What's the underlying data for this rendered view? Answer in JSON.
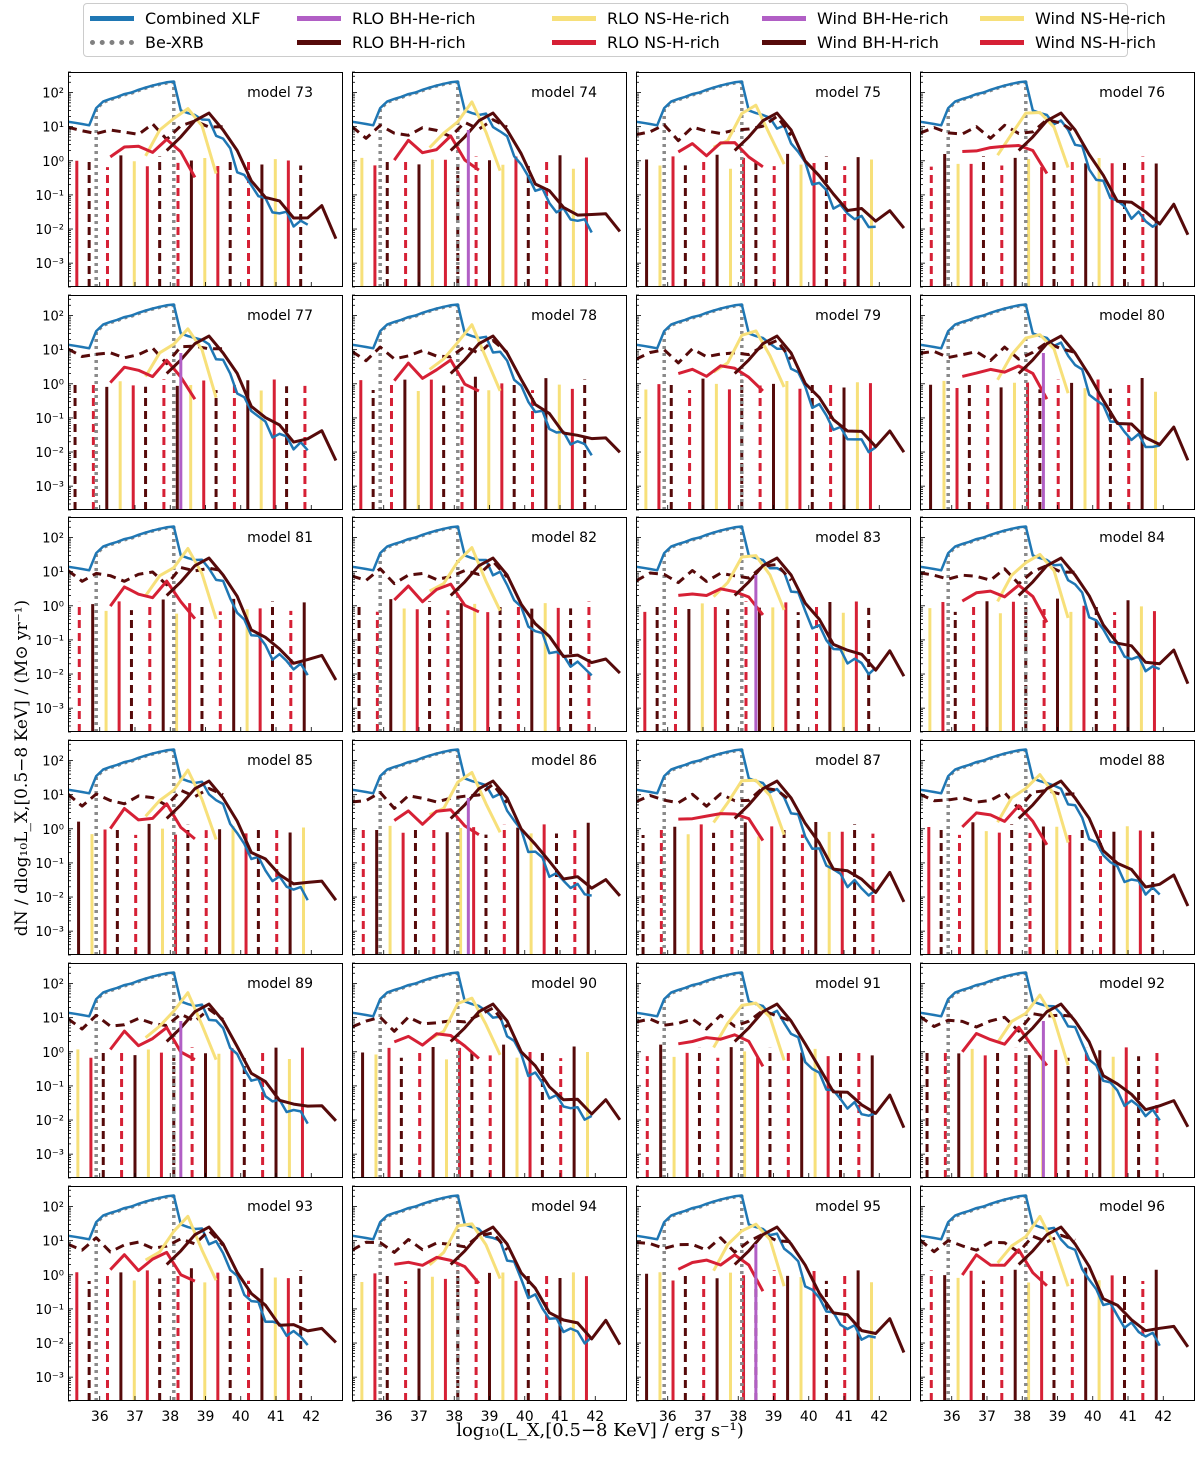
{
  "legend": [
    {
      "label": "Combined XLF",
      "color": "#1f77b4",
      "dash": "solid"
    },
    {
      "label": "Be-XRB",
      "color": "#808080",
      "dash": "dotted"
    },
    {
      "label": "RLO BH-He-rich",
      "color": "#b15fc5",
      "dash": "solid"
    },
    {
      "label": "RLO BH-H-rich",
      "color": "#560a0a",
      "dash": "solid"
    },
    {
      "label": "RLO NS-He-rich",
      "color": "#f7e07a",
      "dash": "solid"
    },
    {
      "label": "RLO NS-H-rich",
      "color": "#d62035",
      "dash": "solid"
    },
    {
      "label": "Wind BH-He-rich",
      "color": "#b15fc5",
      "dash": "solid"
    },
    {
      "label": "Wind BH-H-rich",
      "color": "#560a0a",
      "dash": "solid"
    },
    {
      "label": "Wind NS-He-rich",
      "color": "#f7e07a",
      "dash": "solid"
    },
    {
      "label": "Wind NS-H-rich",
      "color": "#d62035",
      "dash": "solid"
    }
  ],
  "axis_labels": {
    "y": "dN / dlog₁₀L_X,[0.5−8 KeV] / (M⊙ yr⁻¹)",
    "x": "log₁₀(L_X,[0.5−8 KeV] / erg s⁻¹)"
  },
  "chart_data": {
    "type": "line",
    "xlabel": "log₁₀(L_X,[0.5−8 KeV] / erg s⁻¹)",
    "ylabel": "dN / dlog₁₀L_X,[0.5−8 KeV] / (M⊙ yr⁻¹)",
    "xlim": [
      35.1,
      42.9
    ],
    "ylim": [
      0.0002,
      400
    ],
    "yscale": "log",
    "xticks": [
      36,
      37,
      38,
      39,
      40,
      41,
      42
    ],
    "yticks": [
      0.001,
      0.01,
      0.1,
      1,
      10,
      100
    ],
    "ytick_labels": [
      "10⁻³",
      "10⁻²",
      "10⁻¹",
      "10⁰",
      "10¹",
      "10²"
    ],
    "panel_titles": [
      "model 73",
      "model 74",
      "model 75",
      "model 76",
      "model 77",
      "model 78",
      "model 79",
      "model 80",
      "model 81",
      "model 82",
      "model 83",
      "model 84",
      "model 85",
      "model 86",
      "model 87",
      "model 88",
      "model 89",
      "model 90",
      "model 91",
      "model 92",
      "model 93",
      "model 94",
      "model 95",
      "model 96"
    ],
    "combined_xlf": {
      "x": [
        35.1,
        35.3,
        35.5,
        35.7,
        35.9,
        36.1,
        36.3,
        36.5,
        36.7,
        36.9,
        37.1,
        37.3,
        37.5,
        37.7,
        37.9,
        38.1,
        38.3,
        38.5,
        38.7,
        38.9,
        39.1,
        39.3,
        39.5,
        39.7,
        39.9,
        40.1,
        40.3,
        40.5,
        40.7,
        40.9,
        41.1,
        41.3,
        41.5,
        41.7,
        41.9
      ],
      "y": [
        14,
        13,
        12,
        11,
        35,
        55,
        65,
        75,
        90,
        100,
        120,
        140,
        160,
        180,
        200,
        210,
        30,
        25,
        22,
        18,
        12,
        8,
        4,
        2,
        0.7,
        0.3,
        0.2,
        0.12,
        0.06,
        0.04,
        0.03,
        0.025,
        0.018,
        0.015,
        0.012
      ]
    },
    "be_xrb": {
      "x": [
        35.9,
        36.1,
        36.3,
        36.5,
        36.7,
        36.9,
        37.1,
        37.3,
        37.5,
        37.7,
        37.9,
        38.1
      ],
      "y": [
        33,
        52,
        62,
        72,
        86,
        96,
        115,
        135,
        155,
        175,
        190,
        200
      ]
    },
    "wind_bh_h_rich": {
      "x": [
        35.1,
        35.5,
        35.9,
        36.3,
        36.7,
        37.1,
        37.5,
        37.9,
        38.3,
        38.7,
        39.1,
        39.5
      ],
      "y": [
        8,
        7,
        9,
        6,
        8,
        7,
        9,
        6,
        10,
        12,
        15,
        8
      ]
    },
    "rlo_bh_h_rich": {
      "x": [
        37.9,
        38.3,
        38.7,
        39.1,
        39.5,
        39.9,
        40.3,
        40.7,
        41.1,
        41.5,
        41.9,
        42.3,
        42.7
      ],
      "y": [
        2,
        5,
        15,
        25,
        8,
        1.5,
        0.3,
        0.1,
        0.05,
        0.03,
        0.02,
        0.04,
        0.008
      ]
    },
    "rlo_ns_he_rich": {
      "x": [
        37.3,
        37.7,
        38.1,
        38.5,
        38.9,
        39.3
      ],
      "y": [
        2,
        6,
        20,
        40,
        8,
        0.6
      ]
    },
    "rlo_ns_h_rich": {
      "x": [
        36.3,
        36.7,
        37.1,
        37.5,
        37.9,
        38.3,
        38.7
      ],
      "y": [
        1.5,
        3,
        2,
        2.5,
        4,
        1.5,
        0.5
      ]
    },
    "note": "each panel shows the same series families with per-model variation; values are approximate reads"
  }
}
